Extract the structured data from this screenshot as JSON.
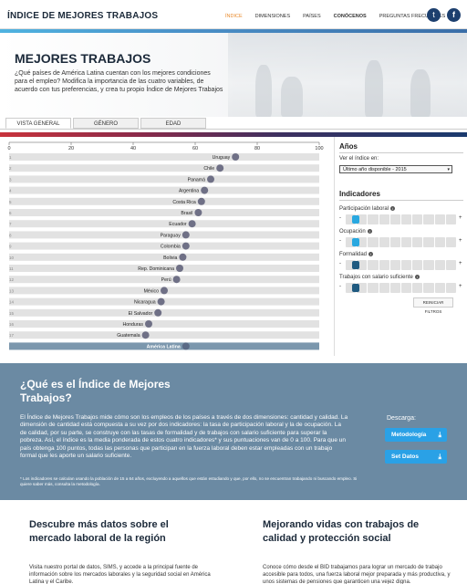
{
  "header": {
    "logo": "ÍNDICE DE MEJORES TRABAJOS",
    "nav": [
      {
        "label": "ÍNDICE",
        "active": true
      },
      {
        "label": "DIMENSIONES"
      },
      {
        "label": "PAÍSES"
      },
      {
        "label": "CONÓCENOS"
      },
      {
        "label": "PREGUNTAS FRECUENTES"
      }
    ],
    "twitter_glyph": "t",
    "facebook_glyph": "f"
  },
  "hero": {
    "title": "MEJORES TRABAJOS",
    "description": "¿Qué países de América Latina cuentan con los mejores condiciones para el empleo? Modifica la importancia de las cuatro variables, de acuerdo con tus preferencias, y crea tu propio Índice de Mejores Trabajos"
  },
  "tabs": [
    "VISTA GENERAL",
    "GÉNERO",
    "EDAD"
  ],
  "chart_data": {
    "type": "scatter",
    "xlim": [
      0,
      100
    ],
    "ticks": [
      0,
      20,
      40,
      60,
      80,
      100
    ],
    "rows": [
      {
        "rank": "1",
        "country": "Uruguay",
        "value": 73
      },
      {
        "rank": "2",
        "country": "Chile",
        "value": 68
      },
      {
        "rank": "3",
        "country": "Panamá",
        "value": 65
      },
      {
        "rank": "4",
        "country": "Argentina",
        "value": 63
      },
      {
        "rank": "5",
        "country": "Costa Rica",
        "value": 62
      },
      {
        "rank": "6",
        "country": "Brasil",
        "value": 61
      },
      {
        "rank": "7",
        "country": "Ecuador",
        "value": 59
      },
      {
        "rank": "8",
        "country": "Paraguay",
        "value": 57
      },
      {
        "rank": "9",
        "country": "Colombia",
        "value": 57
      },
      {
        "rank": "10",
        "country": "Bolivia",
        "value": 56
      },
      {
        "rank": "11",
        "country": "Rep. Dominicana",
        "value": 55
      },
      {
        "rank": "12",
        "country": "Perú",
        "value": 54
      },
      {
        "rank": "13",
        "country": "México",
        "value": 50
      },
      {
        "rank": "14",
        "country": "Nicaragua",
        "value": 49
      },
      {
        "rank": "15",
        "country": "El Salvador",
        "value": 48
      },
      {
        "rank": "16",
        "country": "Honduras",
        "value": 45
      },
      {
        "rank": "17",
        "country": "Guatemala",
        "value": 44
      }
    ],
    "aggregate": {
      "label": "América Latina",
      "value": 57
    }
  },
  "panel": {
    "years_title": "Años",
    "view_label": "Ver el índice en:",
    "year_select": "Último año disponible - 2015",
    "indicators_title": "Indicadores",
    "indicators": [
      {
        "label": "Participación laboral",
        "level": 0.05,
        "color": "#29a8e0"
      },
      {
        "label": "Ocupación",
        "level": 0.05,
        "color": "#29a8e0"
      },
      {
        "label": "Formalidad",
        "level": 0.05,
        "color": "#1f5a80"
      },
      {
        "label": "Trabajos con salario suficiente",
        "level": 0.05,
        "color": "#1f5a80"
      }
    ],
    "minus": "-",
    "plus": "+",
    "info_glyph": "i",
    "reset": "REINICIAR FILTROS"
  },
  "info": {
    "title": "¿Qué es el Índice de Mejores Trabajos?",
    "text": "El Índice de Mejores Trabajos mide cómo son los empleos de los países a través de dos dimensiones: cantidad y calidad. La dimensión de cantidad está compuesta a su vez por dos indicadores: la tasa de participación laboral y la de ocupación. La de calidad, por su parte, se construye con las tasas de formalidad y de trabajos con salario suficiente para superar la pobreza. Así, el índice es la media ponderada de estos cuatro indicadores* y sus puntuaciones van de 0 a 100. Para que un país obtenga 100 puntos, todas las personas que participan en la fuerza laboral deben estar empleadas con un trabajo formal que les aporte un salario suficiente.",
    "footnote": "* Los indicadores se calculan usando la población de 15 a 64 años, excluyendo a aquellos que están estudiando y que, por ello, no se encuentran trabajando ni buscando empleo. Si quiere saber más, consulta la metodología.",
    "download_label": "Descarga:",
    "methodology": "Metodología",
    "datasets": "Set Datos",
    "download_glyph": "⤓"
  },
  "bottom": {
    "left_title": "Descubre más datos sobre el mercado laboral de la región",
    "left_text": "Visita nuestro portal de datos, SIMS, y accede a la principal fuente de información sobre los mercados laborales y la seguridad social en América Latina y el Caribe.",
    "right_title": "Mejorando vidas con trabajos de calidad y protección social",
    "right_text": "Conoce cómo desde el BID trabajamos para lograr un mercado de trabajo accesible para todos, una fuerza laboral mejor preparada y más productiva, y unos sistemas de pensiones que garanticen una vejez digna."
  }
}
